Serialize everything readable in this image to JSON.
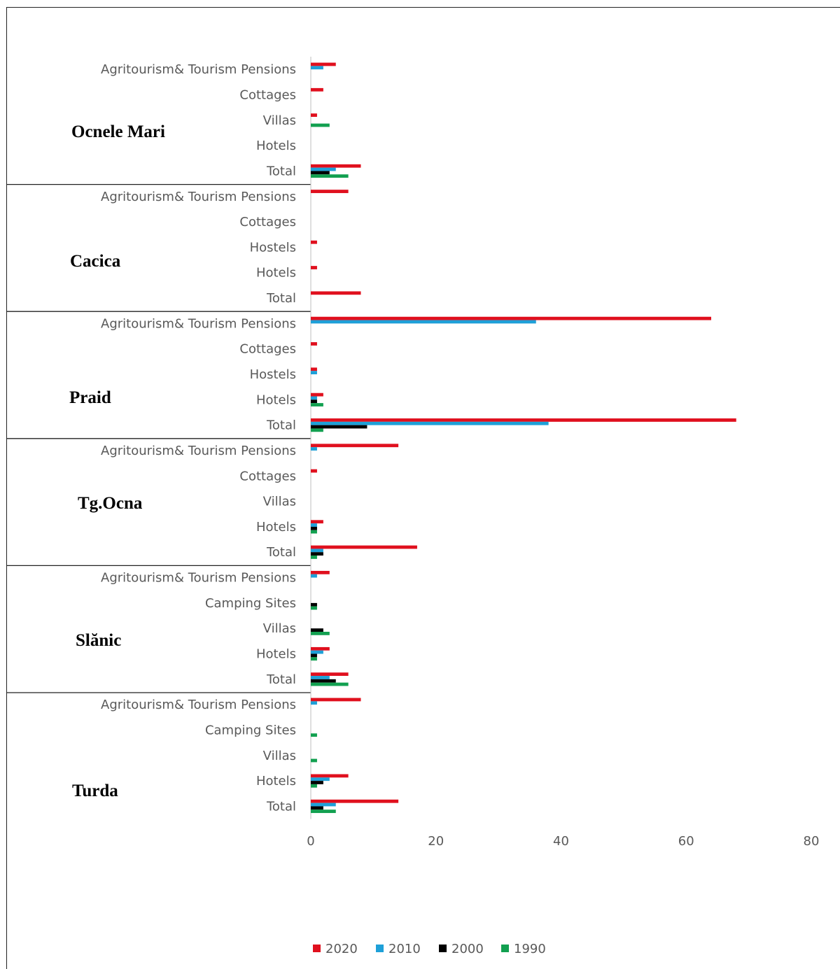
{
  "chart_data": {
    "type": "bar",
    "orientation": "horizontal",
    "xlim": [
      0,
      80
    ],
    "x_ticks": [
      "0",
      "20",
      "40",
      "60",
      "80"
    ],
    "legend_position": "bottom",
    "series": [
      {
        "name": "2020",
        "color": "#e0101e"
      },
      {
        "name": "2010",
        "color": "#1ea0d8"
      },
      {
        "name": "2000",
        "color": "#000000"
      },
      {
        "name": "1990",
        "color": "#12a050"
      }
    ],
    "groups": [
      {
        "name": "Ocnele Mari",
        "categories": [
          {
            "label": "Agritourism& Tourism Pensions",
            "values": [
              4,
              2,
              0,
              0
            ]
          },
          {
            "label": "Cottages",
            "values": [
              2,
              0,
              0,
              0
            ]
          },
          {
            "label": "Villas",
            "values": [
              1,
              0,
              0,
              3
            ]
          },
          {
            "label": "Hotels",
            "values": [
              0,
              0,
              0,
              0
            ]
          },
          {
            "label": "Total",
            "values": [
              8,
              4,
              3,
              6
            ]
          }
        ]
      },
      {
        "name": "Cacica",
        "categories": [
          {
            "label": "Agritourism& Tourism Pensions",
            "values": [
              6,
              0,
              0,
              0
            ]
          },
          {
            "label": "Cottages",
            "values": [
              0,
              0,
              0,
              0
            ]
          },
          {
            "label": "Hostels",
            "values": [
              1,
              0,
              0,
              0
            ]
          },
          {
            "label": "Hotels",
            "values": [
              1,
              0,
              0,
              0
            ]
          },
          {
            "label": "Total",
            "values": [
              8,
              0,
              0,
              0
            ]
          }
        ]
      },
      {
        "name": "Praid",
        "categories": [
          {
            "label": "Agritourism& Tourism Pensions",
            "values": [
              64,
              36,
              0,
              0
            ]
          },
          {
            "label": "Cottages",
            "values": [
              1,
              0,
              0,
              0
            ]
          },
          {
            "label": "Hostels",
            "values": [
              1,
              1,
              0,
              0
            ]
          },
          {
            "label": "Hotels",
            "values": [
              2,
              1,
              1,
              2
            ]
          },
          {
            "label": "Total",
            "values": [
              68,
              38,
              9,
              2
            ]
          }
        ]
      },
      {
        "name": "Tg.Ocna",
        "categories": [
          {
            "label": "Agritourism& Tourism Pensions",
            "values": [
              14,
              1,
              0,
              0
            ]
          },
          {
            "label": "Cottages",
            "values": [
              1,
              0,
              0,
              0
            ]
          },
          {
            "label": "Villas",
            "values": [
              0,
              0,
              0,
              0
            ]
          },
          {
            "label": "Hotels",
            "values": [
              2,
              1,
              1,
              1
            ]
          },
          {
            "label": "Total",
            "values": [
              17,
              2,
              2,
              1
            ]
          }
        ]
      },
      {
        "name": "Slănic",
        "categories": [
          {
            "label": "Agritourism& Tourism Pensions",
            "values": [
              3,
              1,
              0,
              0
            ]
          },
          {
            "label": "Camping Sites",
            "values": [
              0,
              0,
              1,
              1
            ]
          },
          {
            "label": "Villas",
            "values": [
              0,
              0,
              2,
              3
            ]
          },
          {
            "label": "Hotels",
            "values": [
              3,
              2,
              1,
              1
            ]
          },
          {
            "label": "Total",
            "values": [
              6,
              3,
              4,
              6
            ]
          }
        ]
      },
      {
        "name": "Turda",
        "categories": [
          {
            "label": "Agritourism& Tourism Pensions",
            "values": [
              8,
              1,
              0,
              0
            ]
          },
          {
            "label": "Camping Sites",
            "values": [
              0,
              0,
              0,
              1
            ]
          },
          {
            "label": "Villas",
            "values": [
              0,
              0,
              0,
              1
            ]
          },
          {
            "label": "Hotels",
            "values": [
              6,
              3,
              2,
              1
            ]
          },
          {
            "label": "Total",
            "values": [
              14,
              4,
              2,
              4
            ]
          }
        ]
      }
    ]
  }
}
